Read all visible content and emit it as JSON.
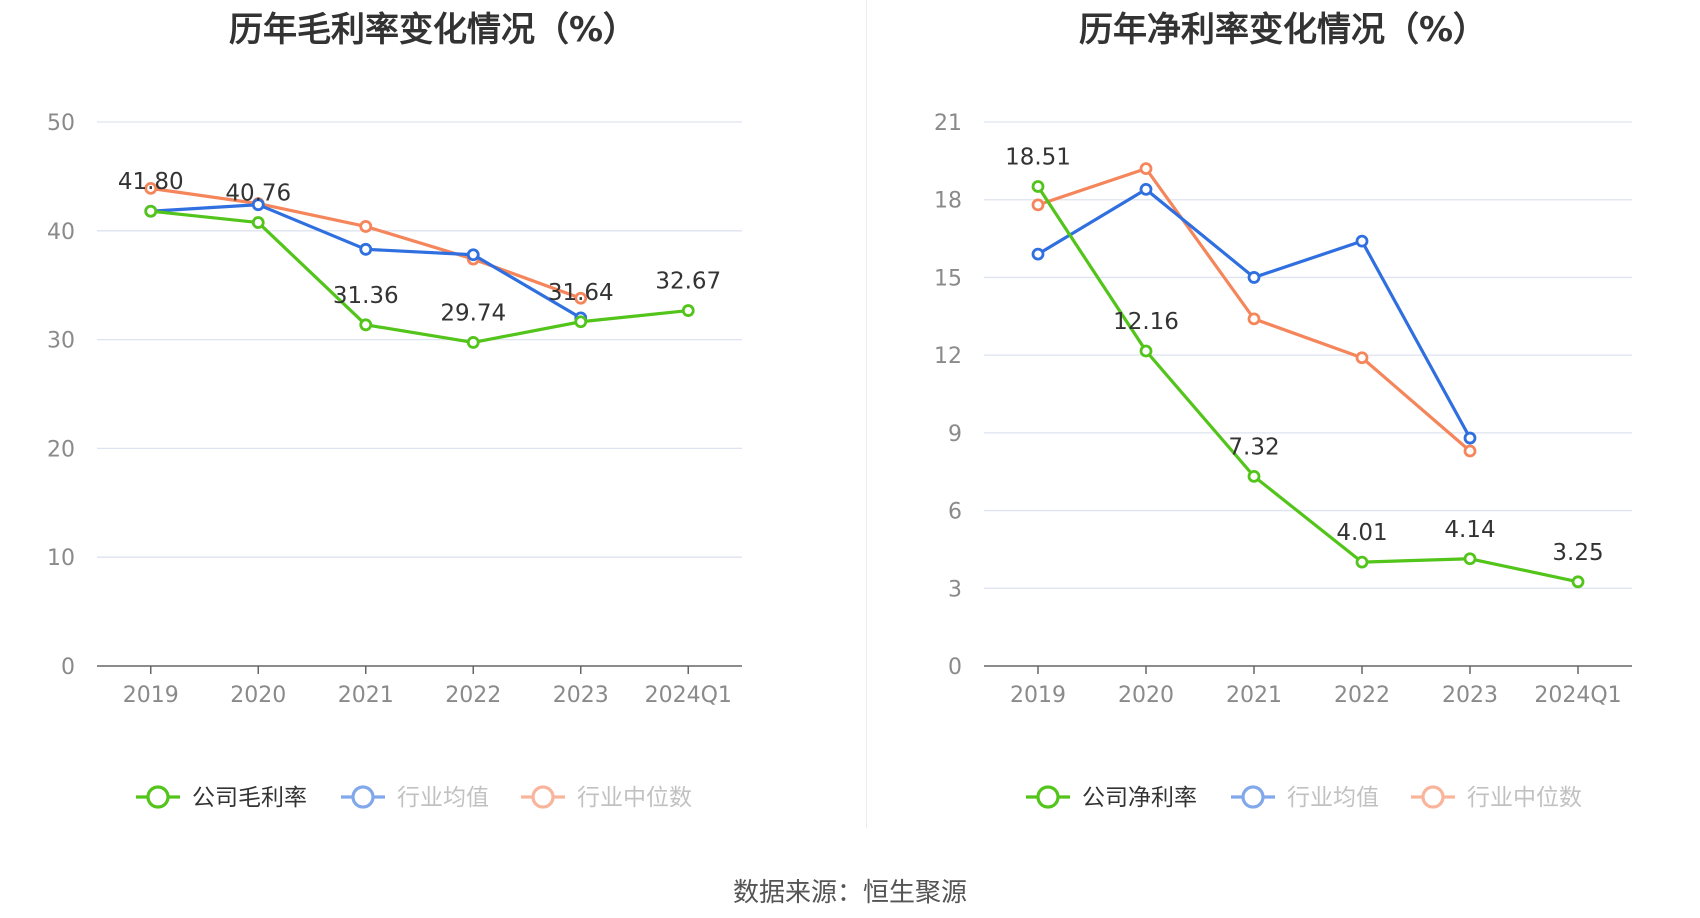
{
  "colors": {
    "company": "#52c41a",
    "industry_avg": "#2f6fdf",
    "industry_median": "#f5855a",
    "grid": "#dde3ef",
    "axis": "#666666",
    "tick_text": "#8a8a8a",
    "label_text": "#333333",
    "legend_active_text": "#333333",
    "legend_faded_text": "#999999"
  },
  "footer": {
    "source": "数据来源：恒生聚源"
  },
  "chart_data": [
    {
      "type": "line",
      "title": "历年毛利率变化情况（%）",
      "xlabel": "",
      "ylabel": "",
      "categories": [
        "2019",
        "2020",
        "2021",
        "2022",
        "2023",
        "2024Q1"
      ],
      "ylim": [
        0,
        50
      ],
      "yticks": [
        0,
        10,
        20,
        30,
        40,
        50
      ],
      "grid": true,
      "legend_position": "bottom",
      "series": [
        {
          "name": "公司毛利率",
          "key": "company",
          "values": [
            41.8,
            40.76,
            31.36,
            29.74,
            31.64,
            32.67
          ],
          "show_labels": true,
          "value_labels": [
            "41.80",
            "40.76",
            "31.36",
            "29.74",
            "31.64",
            "32.67"
          ]
        },
        {
          "name": "行业均值",
          "key": "industry_avg",
          "values": [
            41.8,
            42.4,
            38.3,
            37.8,
            32.0,
            null
          ],
          "show_labels": false
        },
        {
          "name": "行业中位数",
          "key": "industry_median",
          "values": [
            43.9,
            42.5,
            40.4,
            37.4,
            33.8,
            null
          ],
          "show_labels": false
        }
      ]
    },
    {
      "type": "line",
      "title": "历年净利率变化情况（%）",
      "xlabel": "",
      "ylabel": "",
      "categories": [
        "2019",
        "2020",
        "2021",
        "2022",
        "2023",
        "2024Q1"
      ],
      "ylim": [
        0,
        21
      ],
      "yticks": [
        0,
        3,
        6,
        9,
        12,
        15,
        18,
        21
      ],
      "grid": true,
      "legend_position": "bottom",
      "series": [
        {
          "name": "公司净利率",
          "key": "company",
          "values": [
            18.51,
            12.16,
            7.32,
            4.01,
            4.14,
            3.25
          ],
          "show_labels": true,
          "value_labels": [
            "18.51",
            "12.16",
            "7.32",
            "4.01",
            "4.14",
            "3.25"
          ]
        },
        {
          "name": "行业均值",
          "key": "industry_avg",
          "values": [
            15.9,
            18.4,
            15.0,
            16.4,
            8.8,
            null
          ],
          "show_labels": false
        },
        {
          "name": "行业中位数",
          "key": "industry_median",
          "values": [
            17.8,
            19.2,
            13.4,
            11.9,
            8.3,
            null
          ],
          "show_labels": false
        }
      ]
    }
  ]
}
